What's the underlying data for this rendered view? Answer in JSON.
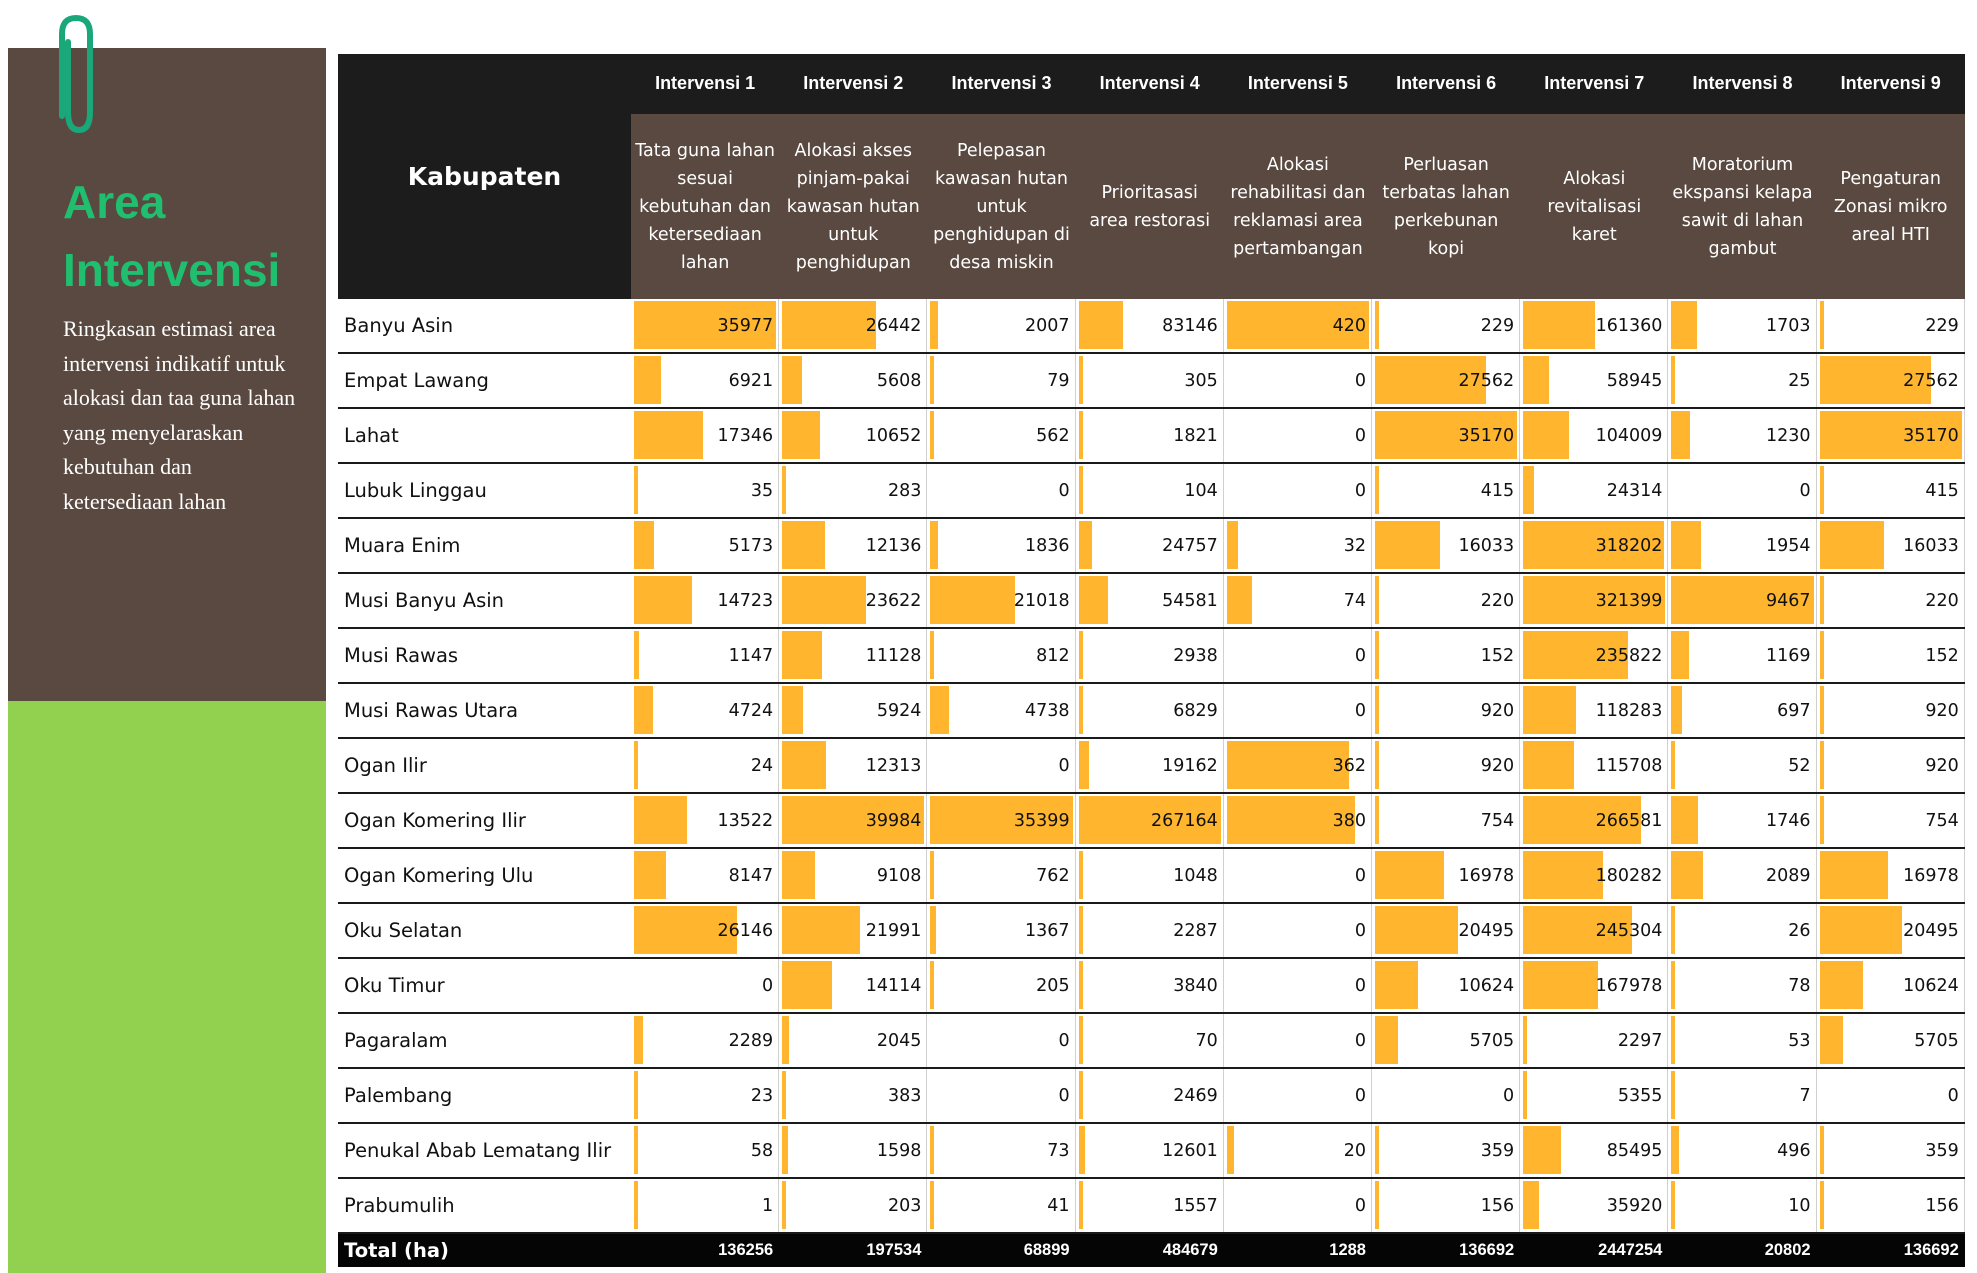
{
  "sidebar": {
    "title": "Area Intervensi",
    "description": "Ringkasan estimasi area intervensi indikatif untuk alokasi dan taa guna lahan yang  menyelaraskan kebutuhan dan ketersediaan lahan",
    "icon": "paperclip-icon",
    "colors": {
      "panel": "#5a4940",
      "accent": "#92d050",
      "title": "#1fbf6f",
      "clip": "#1aa77a"
    }
  },
  "table": {
    "row_header": "Kabupaten",
    "bar_color": "#ffb52e",
    "columns": [
      {
        "label": "Intervensi 1",
        "desc": "Tata guna lahan sesuai kebutuhan dan ketersediaan lahan"
      },
      {
        "label": "Intervensi 2",
        "desc": "Alokasi akses pinjam-pakai kawasan hutan untuk penghidupan"
      },
      {
        "label": "Intervensi 3",
        "desc": "Pelepasan kawasan hutan untuk penghidupan di desa miskin"
      },
      {
        "label": "Intervensi 4",
        "desc": "Prioritasasi area restorasi"
      },
      {
        "label": "Intervensi 5",
        "desc": "Alokasi rehabilitasi dan reklamasi area pertambangan"
      },
      {
        "label": "Intervensi 6",
        "desc": "Perluasan terbatas lahan perkebunan kopi"
      },
      {
        "label": "Intervensi 7",
        "desc": "Alokasi revitalisasi karet"
      },
      {
        "label": "Intervensi 8",
        "desc": "Moratorium ekspansi kelapa sawit di lahan gambut"
      },
      {
        "label": "Intervensi 9",
        "desc": "Pengaturan Zonasi mikro areal HTI"
      }
    ],
    "rows": [
      {
        "name": "Banyu Asin",
        "values": [
          35977,
          26442,
          2007,
          83146,
          420,
          229,
          161360,
          1703,
          229
        ]
      },
      {
        "name": "Empat Lawang",
        "values": [
          6921,
          5608,
          79,
          305,
          0,
          27562,
          58945,
          25,
          27562
        ]
      },
      {
        "name": "Lahat",
        "values": [
          17346,
          10652,
          562,
          1821,
          0,
          35170,
          104009,
          1230,
          35170
        ]
      },
      {
        "name": "Lubuk Linggau",
        "values": [
          35,
          283,
          0,
          104,
          0,
          415,
          24314,
          0,
          415
        ]
      },
      {
        "name": "Muara Enim",
        "values": [
          5173,
          12136,
          1836,
          24757,
          32,
          16033,
          318202,
          1954,
          16033
        ]
      },
      {
        "name": "Musi Banyu Asin",
        "values": [
          14723,
          23622,
          21018,
          54581,
          74,
          220,
          321399,
          9467,
          220
        ]
      },
      {
        "name": "Musi Rawas",
        "values": [
          1147,
          11128,
          812,
          2938,
          0,
          152,
          235822,
          1169,
          152
        ]
      },
      {
        "name": "Musi Rawas Utara",
        "values": [
          4724,
          5924,
          4738,
          6829,
          0,
          920,
          118283,
          697,
          920
        ]
      },
      {
        "name": "Ogan Ilir",
        "values": [
          24,
          12313,
          0,
          19162,
          362,
          920,
          115708,
          52,
          920
        ]
      },
      {
        "name": "Ogan Komering Ilir",
        "values": [
          13522,
          39984,
          35399,
          267164,
          380,
          754,
          266581,
          1746,
          754
        ]
      },
      {
        "name": "Ogan Komering Ulu",
        "values": [
          8147,
          9108,
          762,
          1048,
          0,
          16978,
          180282,
          2089,
          16978
        ]
      },
      {
        "name": "Oku Selatan",
        "values": [
          26146,
          21991,
          1367,
          2287,
          0,
          20495,
          245304,
          26,
          20495
        ]
      },
      {
        "name": "Oku Timur",
        "values": [
          0,
          14114,
          205,
          3840,
          0,
          10624,
          167978,
          78,
          10624
        ]
      },
      {
        "name": "Pagaralam",
        "values": [
          2289,
          2045,
          0,
          70,
          0,
          5705,
          2297,
          53,
          5705
        ]
      },
      {
        "name": "Palembang",
        "values": [
          23,
          383,
          0,
          2469,
          0,
          0,
          5355,
          7,
          0
        ]
      },
      {
        "name": "Penukal Abab Lematang Ilir",
        "values": [
          58,
          1598,
          73,
          12601,
          20,
          359,
          85495,
          496,
          359
        ]
      },
      {
        "name": "Prabumulih",
        "values": [
          1,
          203,
          41,
          1557,
          0,
          156,
          35920,
          10,
          156
        ]
      }
    ],
    "total": {
      "label": "Total (ha)",
      "values": [
        136256,
        197534,
        68899,
        484679,
        1288,
        136692,
        2447254,
        20802,
        136692
      ]
    }
  }
}
